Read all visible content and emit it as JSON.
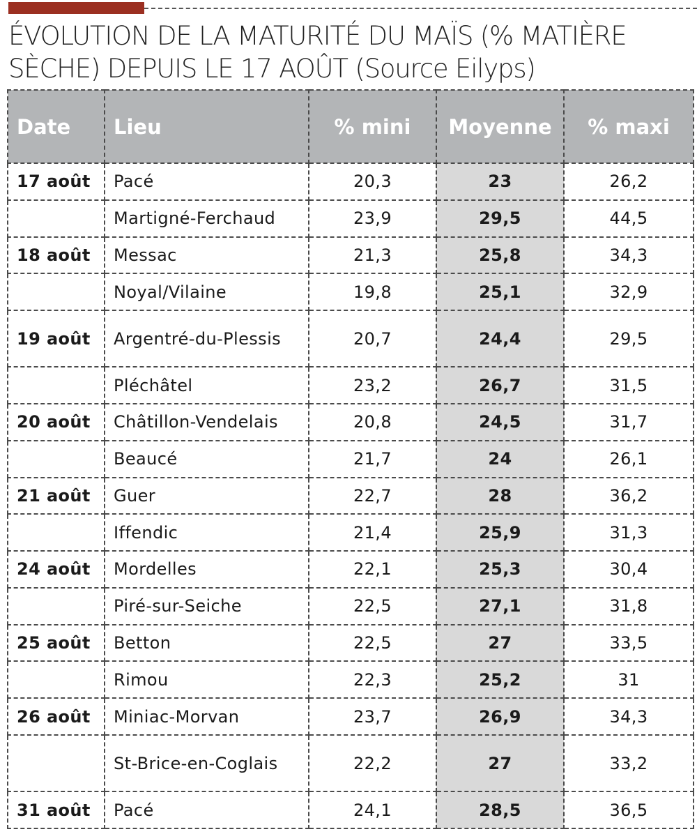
{
  "title": "ÉVOLUTION DE LA MATURITÉ DU MAÏS (% MATIÈRE SÈCHE) DEPUIS LE 17 AOÛT (Source Eilyps)",
  "colors": {
    "accent": "#9b2f21",
    "header_bg": "#b3b5b7",
    "highlight_bg": "#d9d9d9"
  },
  "table": {
    "headers": [
      "Date",
      "Lieu",
      "% mini",
      "Moyenne",
      "% maxi"
    ],
    "rows": [
      {
        "date": "17 août",
        "lieu": "Pacé",
        "mini": "20,3",
        "moyenne": "23",
        "maxi": "26,2"
      },
      {
        "date": "",
        "lieu": "Martigné-Ferchaud",
        "mini": "23,9",
        "moyenne": "29,5",
        "maxi": "44,5"
      },
      {
        "date": "18 août",
        "lieu": "Messac",
        "mini": "21,3",
        "moyenne": "25,8",
        "maxi": "34,3"
      },
      {
        "date": "",
        "lieu": "Noyal/Vilaine",
        "mini": "19,8",
        "moyenne": "25,1",
        "maxi": "32,9"
      },
      {
        "date": "19 août",
        "lieu": "Argentré-du-Plessis",
        "mini": "20,7",
        "moyenne": "24,4",
        "maxi": "29,5"
      },
      {
        "date": "",
        "lieu": "Pléchâtel",
        "mini": "23,2",
        "moyenne": "26,7",
        "maxi": "31,5"
      },
      {
        "date": "20 août",
        "lieu": "Châtillon-Vendelais",
        "mini": "20,8",
        "moyenne": "24,5",
        "maxi": "31,7"
      },
      {
        "date": "",
        "lieu": "Beaucé",
        "mini": "21,7",
        "moyenne": "24",
        "maxi": "26,1"
      },
      {
        "date": "21 août",
        "lieu": "Guer",
        "mini": "22,7",
        "moyenne": "28",
        "maxi": "36,2"
      },
      {
        "date": "",
        "lieu": "Iffendic",
        "mini": "21,4",
        "moyenne": "25,9",
        "maxi": "31,3"
      },
      {
        "date": "24 août",
        "lieu": "Mordelles",
        "mini": "22,1",
        "moyenne": "25,3",
        "maxi": "30,4"
      },
      {
        "date": "",
        "lieu": "Piré-sur-Seiche",
        "mini": "22,5",
        "moyenne": "27,1",
        "maxi": "31,8"
      },
      {
        "date": "25 août",
        "lieu": "Betton",
        "mini": "22,5",
        "moyenne": "27",
        "maxi": "33,5"
      },
      {
        "date": "",
        "lieu": "Rimou",
        "mini": "22,3",
        "moyenne": "25,2",
        "maxi": "31"
      },
      {
        "date": "26 août",
        "lieu": "Miniac-Morvan",
        "mini": "23,7",
        "moyenne": "26,9",
        "maxi": "34,3"
      },
      {
        "date": "",
        "lieu": "St-Brice-en-Coglais",
        "mini": "22,2",
        "moyenne": "27",
        "maxi": "33,2"
      },
      {
        "date": "31 août",
        "lieu": "Pacé",
        "mini": "24,1",
        "moyenne": "28,5",
        "maxi": "36,5"
      }
    ]
  }
}
